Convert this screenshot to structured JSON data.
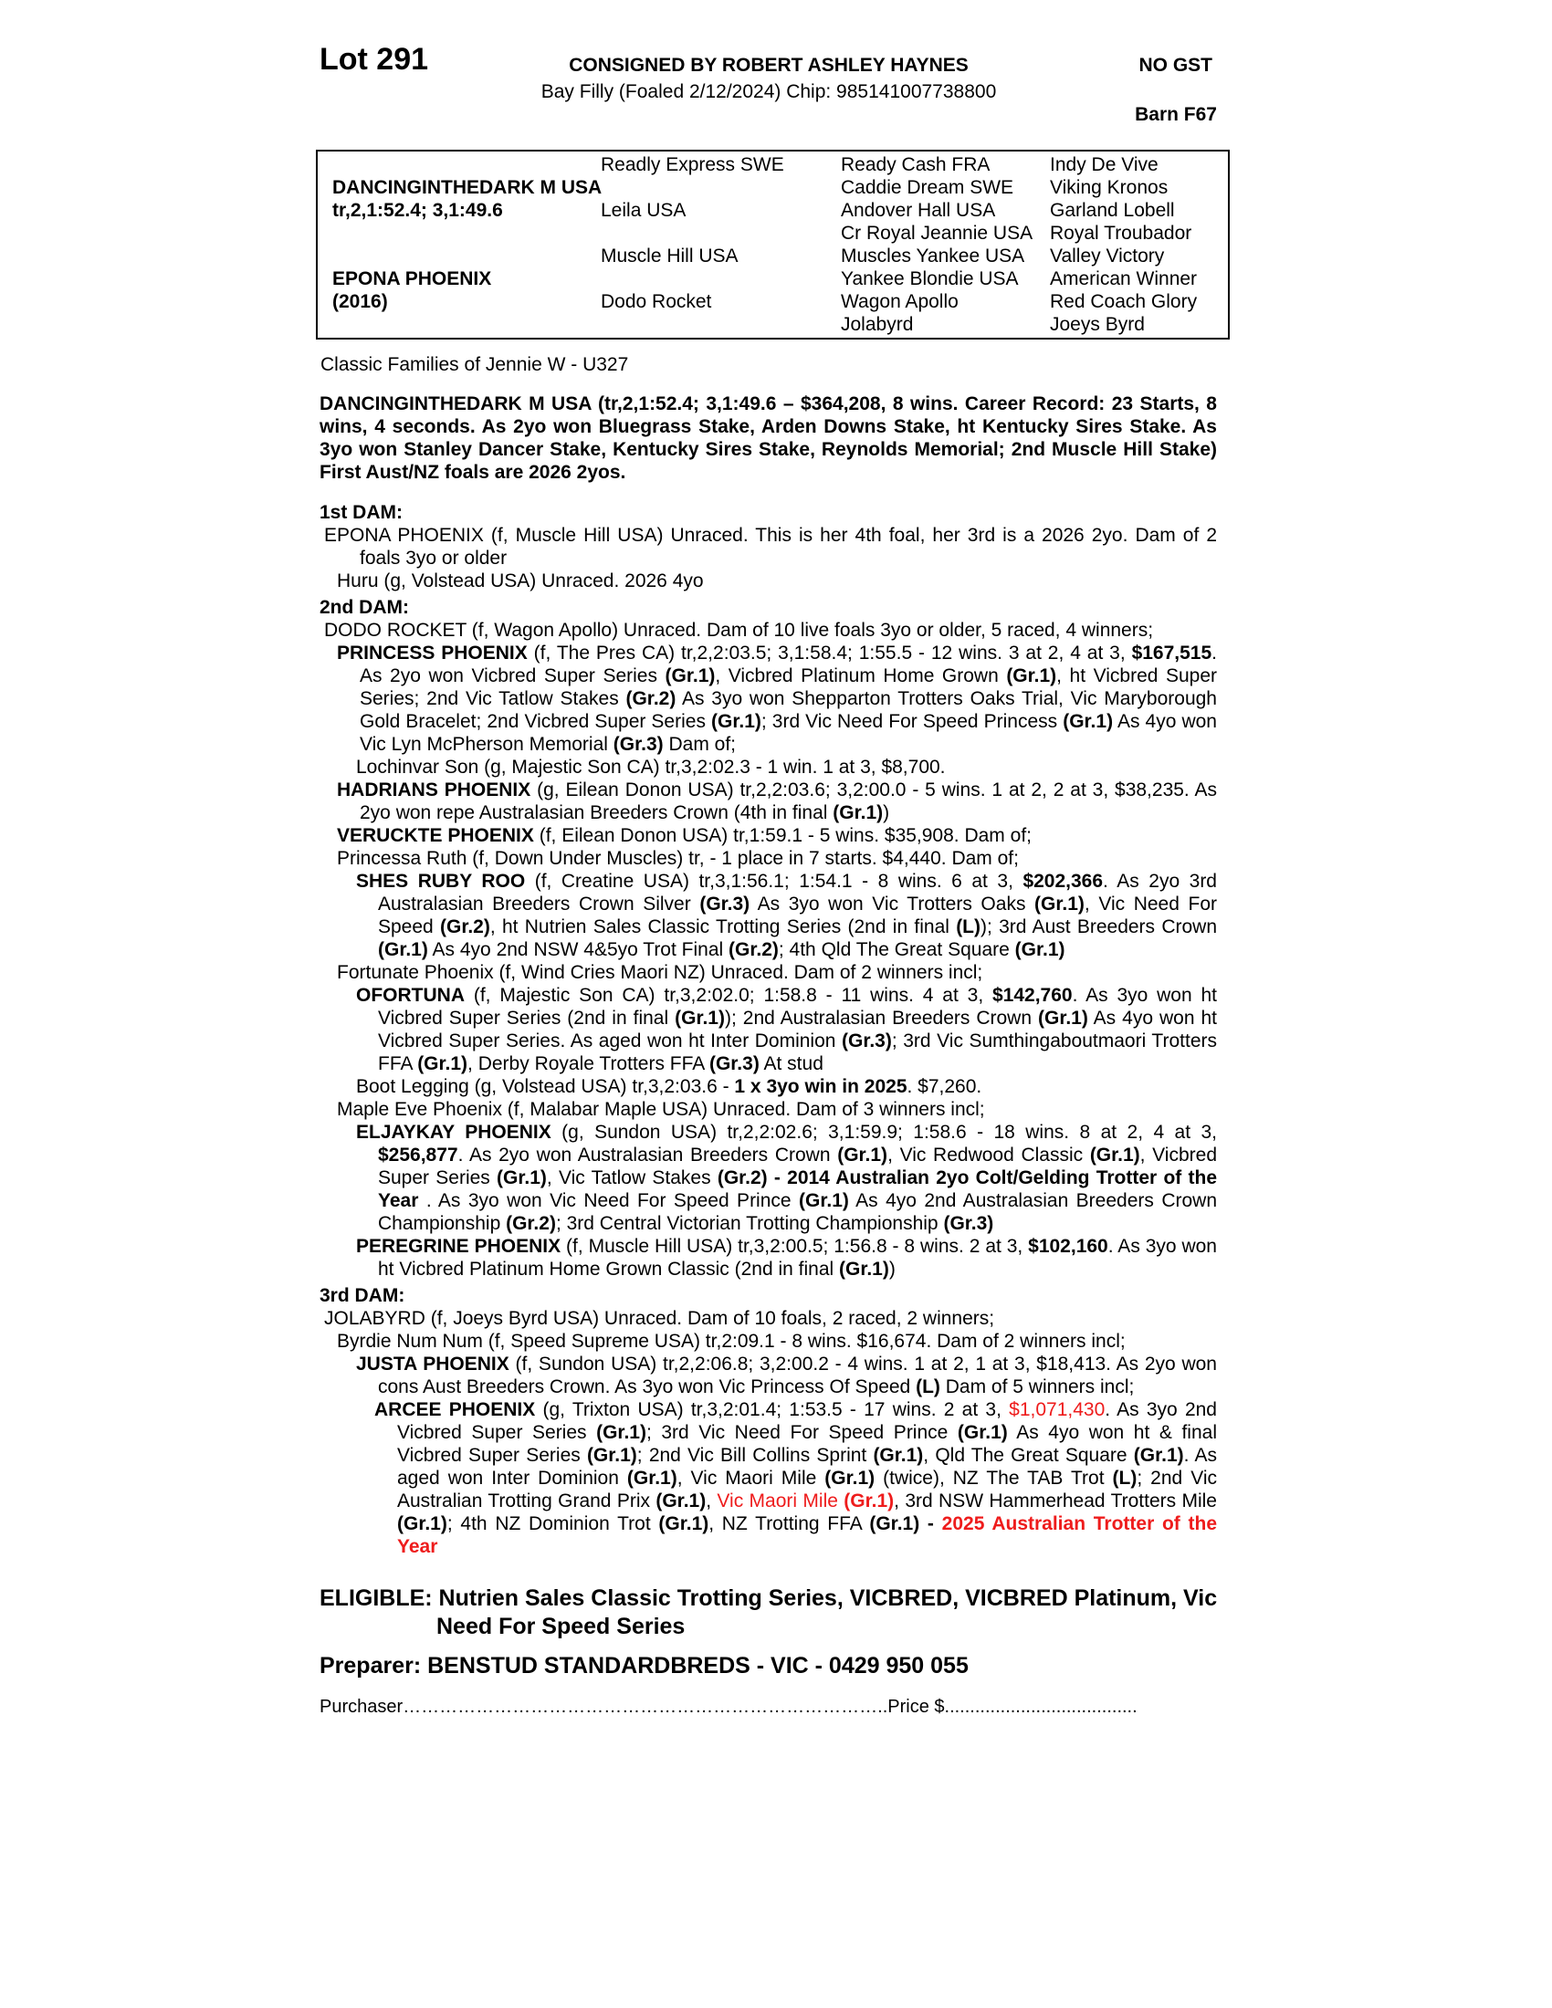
{
  "header": {
    "lot": "Lot 291",
    "consigned": "CONSIGNED BY ROBERT ASHLEY HAYNES",
    "subline": "Bay Filly (Foaled 2/12/2024) Chip: 985141007738800",
    "gst": "NO GST",
    "barn": "Barn F67"
  },
  "pedigree": {
    "sire_name": "DANCINGINTHEDARK M USA",
    "sire_record": "tr,2,1:52.4; 3,1:49.6",
    "dam_name": "EPONA PHOENIX",
    "dam_year": "(2016)",
    "gen2": [
      "Readly Express SWE",
      "Leila USA",
      "Muscle Hill USA",
      "Dodo Rocket"
    ],
    "gen3": [
      "Ready Cash FRA",
      "Caddie Dream SWE",
      "Andover Hall USA",
      "Cr Royal Jeannie USA",
      "Muscles Yankee USA",
      "Yankee Blondie USA",
      "Wagon Apollo",
      "Jolabyrd"
    ],
    "gen4": [
      "Indy De Vive",
      "Viking Kronos",
      "Garland Lobell",
      "Royal Troubador",
      "Valley Victory",
      "American Winner",
      "Red Coach Glory",
      "Joeys Byrd"
    ]
  },
  "families": "Classic Families of Jennie W - U327",
  "sire_summary": "DANCINGINTHEDARK M USA (tr,2,1:52.4; 3,1:49.6 – $364,208, 8 wins. Career Record: 23 Starts, 8 wins, 4 seconds. As 2yo won Bluegrass Stake, Arden Downs Stake, ht Kentucky Sires Stake. As 3yo won Stanley Dancer Stake, Kentucky Sires Stake, Reynolds Memorial; 2nd Muscle Hill Stake) First Aust/NZ foals are 2026 2yos.",
  "sections": [
    {
      "heading": "1st DAM:",
      "paras": [
        {
          "level": 0,
          "runs": [
            [
              "EPONA PHOENIX (f, Muscle Hill USA) Unraced. This is her 4th foal, her 3rd is a 2026 2yo. Dam of 2 foals 3yo or older",
              ""
            ]
          ]
        },
        {
          "level": 1,
          "runs": [
            [
              "Huru (g, Volstead USA) Unraced. 2026 4yo",
              ""
            ]
          ]
        }
      ]
    },
    {
      "heading": "2nd DAM:",
      "paras": [
        {
          "level": 0,
          "runs": [
            [
              "DODO ROCKET (f, Wagon Apollo) Unraced. Dam of 10 live foals 3yo or older, 5 raced, 4 winners;",
              ""
            ]
          ]
        },
        {
          "level": 1,
          "runs": [
            [
              "PRINCESS PHOENIX",
              "b"
            ],
            [
              " (f, The Pres CA) tr,2,2:03.5; 3,1:58.4; 1:55.5 - 12 wins. 3 at 2, 4 at 3, ",
              ""
            ],
            [
              "$167,515",
              "b"
            ],
            [
              ". As 2yo won Vicbred Super Series ",
              ""
            ],
            [
              "(Gr.1)",
              "b"
            ],
            [
              ", Vicbred Platinum Home Grown ",
              ""
            ],
            [
              "(Gr.1)",
              "b"
            ],
            [
              ", ht Vicbred Super Series; 2nd Vic Tatlow Stakes ",
              ""
            ],
            [
              "(Gr.2)",
              "b"
            ],
            [
              " As 3yo won Shepparton Trotters Oaks Trial, Vic Maryborough Gold Bracelet; 2nd Vicbred Super Series ",
              ""
            ],
            [
              "(Gr.1)",
              "b"
            ],
            [
              "; 3rd Vic Need For Speed Princess ",
              ""
            ],
            [
              "(Gr.1)",
              "b"
            ],
            [
              " As 4yo won Vic Lyn McPherson Memorial ",
              ""
            ],
            [
              "(Gr.3)",
              "b"
            ],
            [
              "  Dam of;",
              ""
            ]
          ]
        },
        {
          "level": 2,
          "runs": [
            [
              "Lochinvar Son (g, Majestic Son CA) tr,3,2:02.3 - 1 win. 1 at 3, $8,700.",
              ""
            ]
          ]
        },
        {
          "level": 1,
          "runs": [
            [
              "HADRIANS PHOENIX",
              "b"
            ],
            [
              " (g, Eilean Donon USA) tr,2,2:03.6; 3,2:00.0 - 5 wins. 1 at 2, 2 at 3, $38,235. As 2yo won repe Australasian Breeders Crown (4th in final ",
              ""
            ],
            [
              "(Gr.1)",
              "b"
            ],
            [
              ")",
              ""
            ]
          ]
        },
        {
          "level": 1,
          "runs": [
            [
              "VERUCKTE PHOENIX",
              "b"
            ],
            [
              " (f, Eilean Donon USA) tr,1:59.1 - 5 wins. $35,908. Dam of;",
              ""
            ]
          ]
        },
        {
          "level": 1,
          "runs": [
            [
              "Princessa Ruth (f, Down Under Muscles) tr, - 1 place in 7 starts. $4,440. Dam of;",
              ""
            ]
          ]
        },
        {
          "level": 2,
          "runs": [
            [
              "SHES RUBY ROO",
              "b"
            ],
            [
              " (f, Creatine USA) tr,3,1:56.1; 1:54.1 - 8 wins. 6 at 3, ",
              ""
            ],
            [
              "$202,366",
              "b"
            ],
            [
              ". As 2yo 3rd Australasian Breeders Crown Silver ",
              ""
            ],
            [
              "(Gr.3)",
              "b"
            ],
            [
              " As 3yo won Vic Trotters Oaks ",
              ""
            ],
            [
              "(Gr.1)",
              "b"
            ],
            [
              ", Vic Need For Speed ",
              ""
            ],
            [
              "(Gr.2)",
              "b"
            ],
            [
              ", ht Nutrien Sales Classic Trotting Series (2nd in final ",
              ""
            ],
            [
              "(L)",
              "b"
            ],
            [
              "); 3rd Aust Breeders Crown ",
              ""
            ],
            [
              "(Gr.1)",
              "b"
            ],
            [
              " As 4yo 2nd NSW 4&5yo Trot Final ",
              ""
            ],
            [
              "(Gr.2)",
              "b"
            ],
            [
              "; 4th Qld The Great Square ",
              ""
            ],
            [
              "(Gr.1)",
              "b"
            ]
          ]
        },
        {
          "level": 1,
          "runs": [
            [
              "Fortunate Phoenix (f, Wind Cries Maori NZ) Unraced. Dam of 2 winners incl;",
              ""
            ]
          ]
        },
        {
          "level": 2,
          "runs": [
            [
              "OFORTUNA",
              "b"
            ],
            [
              " (f, Majestic Son CA) tr,3,2:02.0; 1:58.8 - 11 wins. 4 at 3, ",
              ""
            ],
            [
              "$142,760",
              "b"
            ],
            [
              ". As 3yo won ht Vicbred Super Series (2nd in final ",
              ""
            ],
            [
              "(Gr.1)",
              "b"
            ],
            [
              "); 2nd Australasian Breeders Crown ",
              ""
            ],
            [
              "(Gr.1)",
              "b"
            ],
            [
              " As 4yo won ht Vicbred Super Series. As aged won ht Inter Dominion ",
              ""
            ],
            [
              "(Gr.3)",
              "b"
            ],
            [
              "; 3rd Vic Sumthingaboutmaori Trotters FFA ",
              ""
            ],
            [
              "(Gr.1)",
              "b"
            ],
            [
              ", Derby Royale Trotters FFA ",
              ""
            ],
            [
              "(Gr.3)",
              "b"
            ],
            [
              " At stud",
              ""
            ]
          ]
        },
        {
          "level": 2,
          "runs": [
            [
              "Boot Legging (g, Volstead USA) tr,3,2:03.6 - ",
              ""
            ],
            [
              "1 x 3yo win in 2025",
              "b"
            ],
            [
              ". $7,260.",
              ""
            ]
          ]
        },
        {
          "level": 1,
          "runs": [
            [
              "Maple Eve Phoenix (f, Malabar Maple USA) Unraced. Dam of 3 winners incl;",
              ""
            ]
          ]
        },
        {
          "level": 2,
          "runs": [
            [
              "ELJAYKAY PHOENIX",
              "b"
            ],
            [
              " (g, Sundon USA) tr,2,2:02.6; 3,1:59.9; 1:58.6 - 18 wins. 8 at 2, 4 at 3, ",
              ""
            ],
            [
              "$256,877",
              "b"
            ],
            [
              ". As 2yo won Australasian Breeders Crown ",
              ""
            ],
            [
              "(Gr.1)",
              "b"
            ],
            [
              ", Vic Redwood Classic ",
              ""
            ],
            [
              "(Gr.1)",
              "b"
            ],
            [
              ", Vicbred Super Series ",
              ""
            ],
            [
              "(Gr.1)",
              "b"
            ],
            [
              ", Vic Tatlow Stakes ",
              ""
            ],
            [
              "(Gr.2) - 2014 Australian 2yo Colt/Gelding Trotter of the Year",
              "b"
            ],
            [
              " . As 3yo won Vic Need For Speed Prince ",
              ""
            ],
            [
              "(Gr.1)",
              "b"
            ],
            [
              " As 4yo 2nd Australasian Breeders Crown Championship ",
              ""
            ],
            [
              "(Gr.2)",
              "b"
            ],
            [
              "; 3rd Central Victorian Trotting Championship ",
              ""
            ],
            [
              "(Gr.3)",
              "b"
            ]
          ]
        },
        {
          "level": 2,
          "runs": [
            [
              "PEREGRINE PHOENIX",
              "b"
            ],
            [
              " (f, Muscle Hill USA) tr,3,2:00.5; 1:56.8 - 8 wins. 2 at 3, ",
              ""
            ],
            [
              "$102,160",
              "b"
            ],
            [
              ". As 3yo won ht Vicbred Platinum Home Grown Classic (2nd in final ",
              ""
            ],
            [
              "(Gr.1)",
              "b"
            ],
            [
              ")",
              ""
            ]
          ]
        }
      ]
    },
    {
      "heading": "3rd DAM:",
      "paras": [
        {
          "level": 0,
          "runs": [
            [
              "JOLABYRD (f, Joeys Byrd USA) Unraced. Dam of 10 foals, 2 raced, 2 winners;",
              ""
            ]
          ]
        },
        {
          "level": 1,
          "runs": [
            [
              "Byrdie Num Num (f, Speed Supreme USA) tr,2:09.1 - 8 wins. $16,674. Dam of 2 winners incl;",
              ""
            ]
          ]
        },
        {
          "level": 2,
          "runs": [
            [
              "JUSTA PHOENIX",
              "b"
            ],
            [
              " (f, Sundon USA) tr,2,2:06.8; 3,2:00.2 - 4 wins. 1 at 2, 1 at 3, $18,413. As 2yo won cons Aust Breeders Crown. As 3yo won Vic Princess Of Speed ",
              ""
            ],
            [
              "(L)",
              "b"
            ],
            [
              " Dam of 5 winners incl;",
              ""
            ]
          ]
        },
        {
          "level": 3,
          "runs": [
            [
              "ARCEE PHOENIX",
              "b"
            ],
            [
              " (g, Trixton USA) tr,3,2:01.4; 1:53.5 - 17 wins. 2 at 3, ",
              ""
            ],
            [
              "$1,071,430",
              "r"
            ],
            [
              ". As 3yo 2nd Vicbred Super Series ",
              ""
            ],
            [
              "(Gr.1)",
              "b"
            ],
            [
              "; 3rd Vic Need For Speed Prince ",
              ""
            ],
            [
              "(Gr.1)",
              "b"
            ],
            [
              " As 4yo won ht & final Vicbred Super Series ",
              ""
            ],
            [
              "(Gr.1)",
              "b"
            ],
            [
              "; 2nd Vic Bill Collins Sprint ",
              ""
            ],
            [
              "(Gr.1)",
              "b"
            ],
            [
              ", Qld The Great Square ",
              ""
            ],
            [
              "(Gr.1)",
              "b"
            ],
            [
              ". As aged won Inter Dominion ",
              ""
            ],
            [
              "(Gr.1)",
              "b"
            ],
            [
              ", Vic Maori Mile ",
              ""
            ],
            [
              "(Gr.1)",
              "b"
            ],
            [
              " (twice), NZ The TAB Trot ",
              ""
            ],
            [
              "(L)",
              "b"
            ],
            [
              "; 2nd Vic Australian Trotting Grand Prix ",
              ""
            ],
            [
              "(Gr.1)",
              "b"
            ],
            [
              ", ",
              ""
            ],
            [
              "Vic Maori Mile ",
              "r"
            ],
            [
              "(Gr.1)",
              "b r"
            ],
            [
              ", 3rd NSW Hammerhead Trotters Mile ",
              ""
            ],
            [
              "(Gr.1)",
              "b"
            ],
            [
              "; 4th NZ Dominion Trot ",
              ""
            ],
            [
              "(Gr.1)",
              "b"
            ],
            [
              ", NZ Trotting FFA ",
              ""
            ],
            [
              "(Gr.1) -",
              "b"
            ],
            [
              " ",
              ""
            ],
            [
              "2025 Australian Trotter of the Year",
              "b r"
            ]
          ]
        }
      ]
    }
  ],
  "footer": {
    "eligible": "ELIGIBLE: Nutrien Sales Classic Trotting Series, VICBRED, VICBRED Platinum, Vic Need For Speed Series",
    "preparer": "Preparer: BENSTUD STANDARDBREDS - VIC - 0429 950 055",
    "purchaser": "Purchaser……………………………………………………………………..Price $......................................"
  },
  "colors": {
    "highlight": "#ee1c1c",
    "text": "#000000"
  }
}
